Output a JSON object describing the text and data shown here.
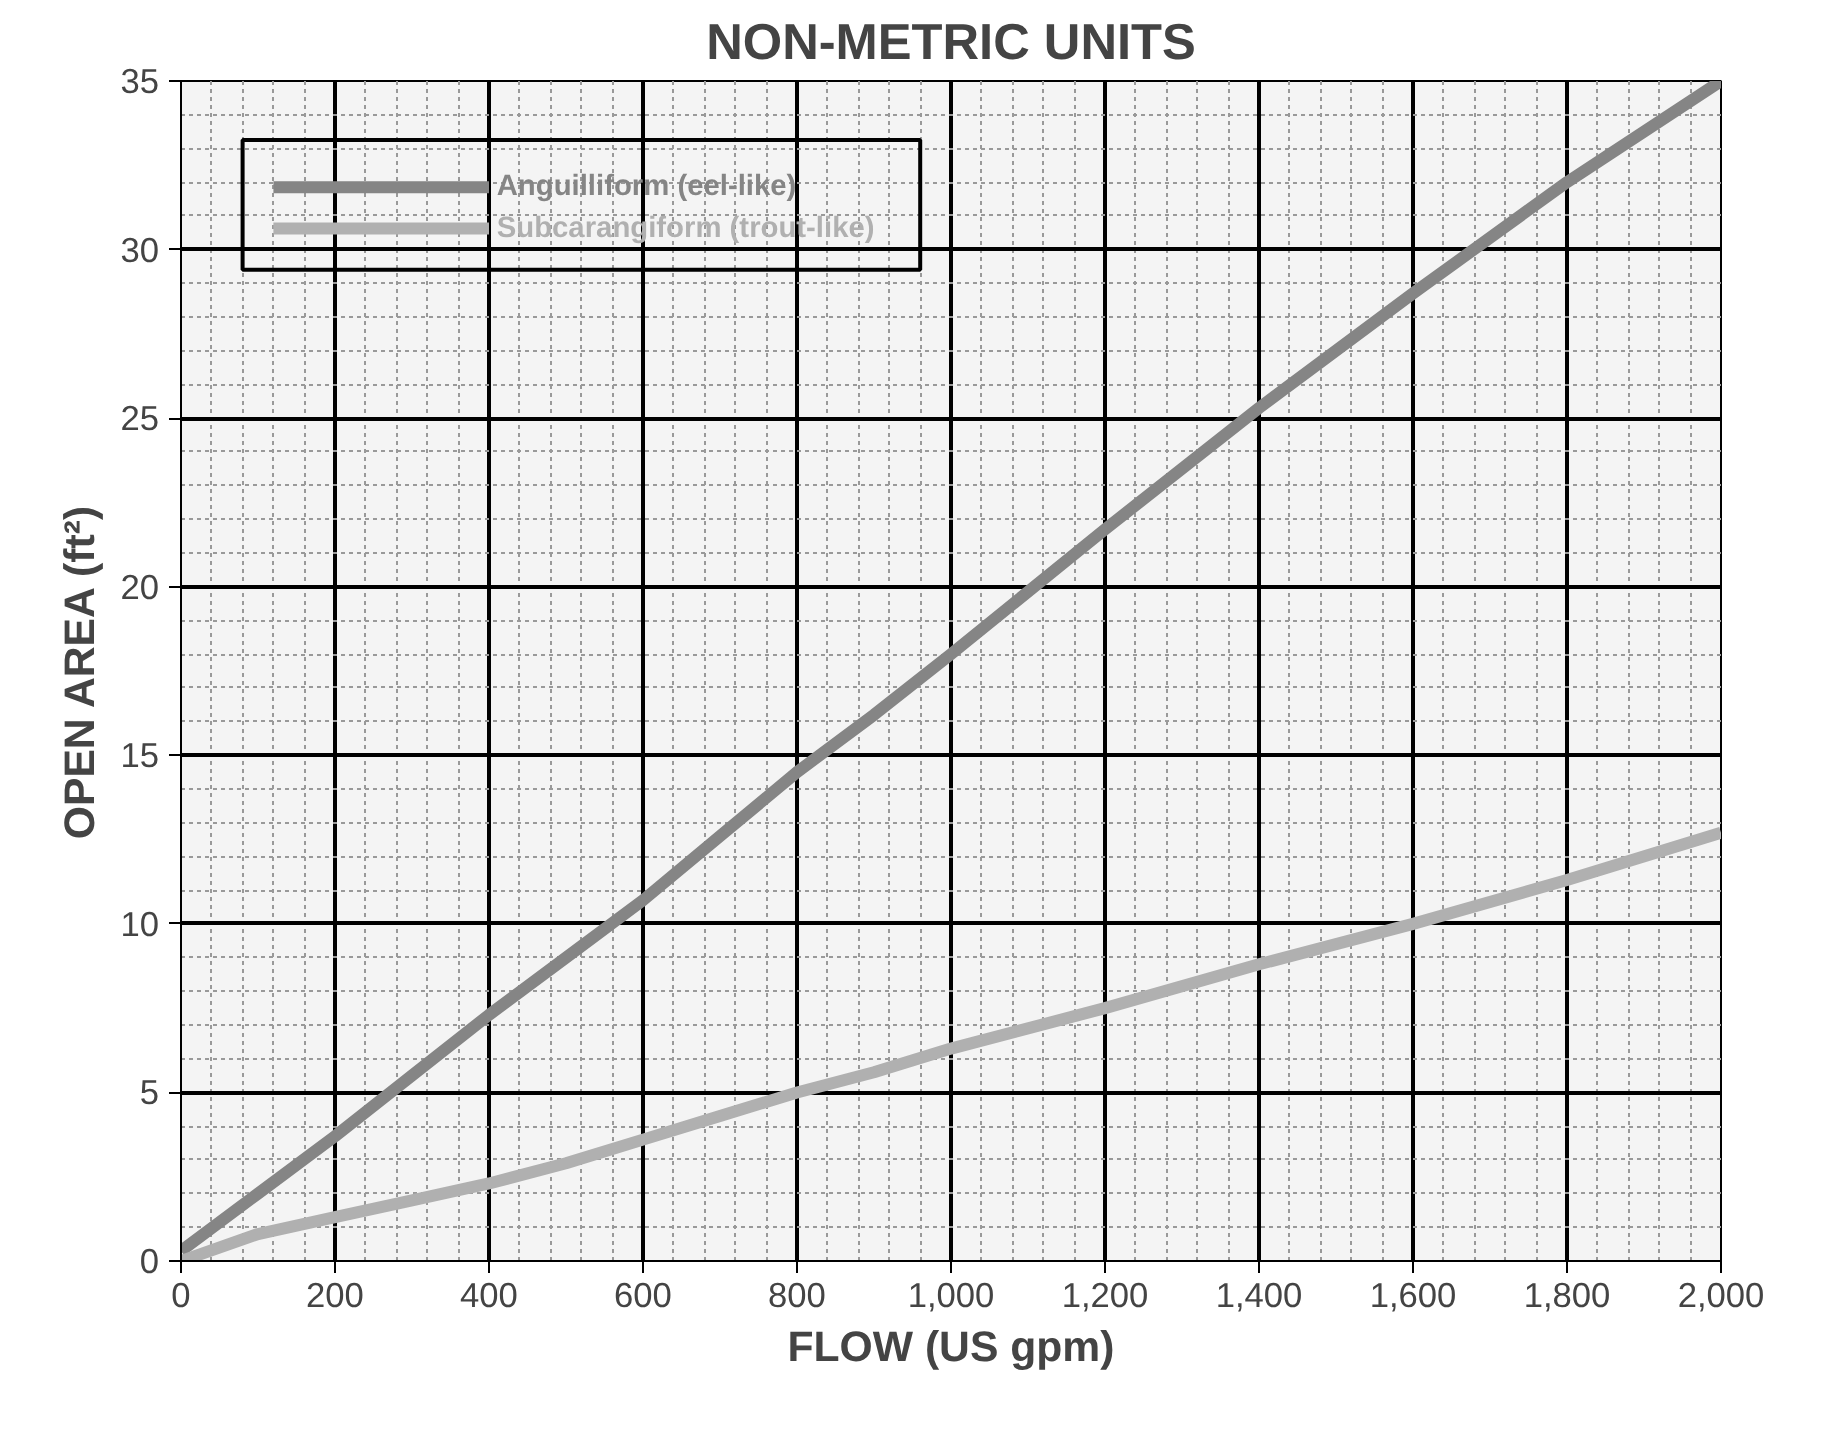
{
  "chart_data": {
    "type": "line",
    "title": "NON-METRIC UNITS",
    "xlabel": "FLOW (US gpm)",
    "ylabel": "OPEN AREA (ft²)",
    "x": [
      0,
      100,
      200,
      300,
      400,
      500,
      600,
      700,
      800,
      900,
      1000,
      1200,
      1400,
      1600,
      1800,
      2000
    ],
    "series": [
      {
        "name": "Anguilliform (eel-like)",
        "color": "#858585",
        "values": [
          0.3,
          2.0,
          3.7,
          5.5,
          7.3,
          9.0,
          10.7,
          12.6,
          14.5,
          16.2,
          18.0,
          21.7,
          25.3,
          28.7,
          32.0,
          35.0
        ]
      },
      {
        "name": "Subcarangiform (trout-like)",
        "color": "#b0b0b0",
        "values": [
          0,
          0.8,
          1.3,
          1.8,
          2.3,
          2.9,
          3.6,
          4.3,
          5.0,
          5.6,
          6.3,
          7.5,
          8.8,
          10.0,
          11.3,
          12.7
        ]
      }
    ],
    "xlim": [
      0,
      2000
    ],
    "ylim": [
      0,
      35
    ],
    "xticks": [
      0,
      200,
      400,
      600,
      800,
      {
        "value": 1000,
        "label": "1,000"
      },
      {
        "value": 1200,
        "label": "1,200"
      },
      {
        "value": 1400,
        "label": "1,400"
      },
      {
        "value": 1600,
        "label": "1,600"
      },
      {
        "value": 1800,
        "label": "1,800"
      },
      {
        "value": 2000,
        "label": "2,000"
      }
    ],
    "yticks": [
      0,
      5,
      10,
      15,
      20,
      25,
      30,
      35
    ],
    "grid": true,
    "legend": "top left",
    "marker": "none",
    "line_style": "solid"
  }
}
